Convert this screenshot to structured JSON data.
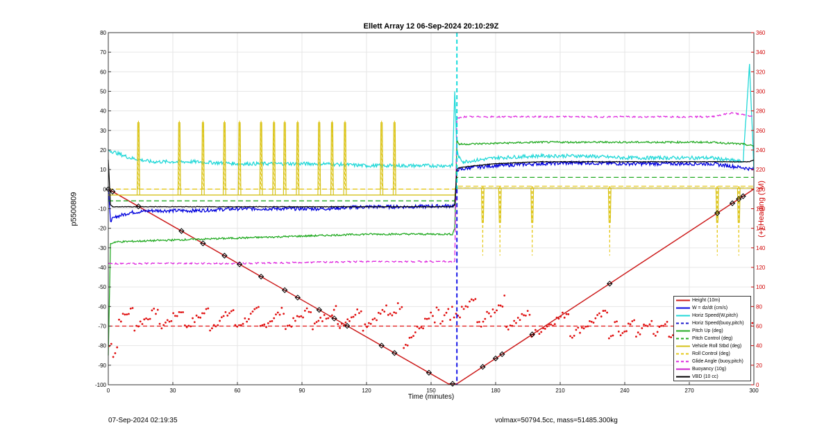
{
  "chart_data": {
    "type": "line",
    "title": "Ellett Array 12 06-Sep-2024 20:10:29Z",
    "xlabel": "Time (minutes)",
    "ylabel": "p5500809",
    "ylabel_right": "(+) Heading (°M)",
    "xlim": [
      0,
      300
    ],
    "ylim": [
      -100,
      80
    ],
    "ylim_right": [
      0,
      360
    ],
    "x_ticks": [
      0,
      30,
      60,
      90,
      120,
      150,
      180,
      210,
      240,
      270,
      300
    ],
    "y_ticks": [
      -100,
      -90,
      -80,
      -70,
      -60,
      -50,
      -40,
      -30,
      -20,
      -10,
      0,
      10,
      20,
      30,
      40,
      50,
      60,
      70,
      80
    ],
    "y_ticks_right": [
      0,
      20,
      40,
      60,
      80,
      100,
      120,
      140,
      160,
      180,
      200,
      220,
      240,
      260,
      280,
      300,
      320,
      340,
      360
    ],
    "grid": true,
    "legend_position": "bottom-right",
    "vertical_markers": [
      {
        "x": 162,
        "color": "#00d8d8",
        "style": "dashed",
        "y_from": 80,
        "y_to": 0
      },
      {
        "x": 162,
        "color": "#0000e6",
        "style": "dashed",
        "y_from": 0,
        "y_to": -100
      }
    ],
    "series": [
      {
        "name": "Height (10m)",
        "color": "#cc1a1a",
        "style": "solid",
        "x": [
          0,
          158,
          162,
          300
        ],
        "y": [
          0,
          -99.5,
          -99.5,
          0
        ]
      },
      {
        "name": "W = dz/dt (cm/s)",
        "color": "#0000dd",
        "style": "solid",
        "x": [
          0,
          1,
          4,
          10,
          20,
          40,
          60,
          80,
          100,
          120,
          140,
          160,
          161,
          162,
          164,
          168,
          180,
          200,
          220,
          240,
          260,
          280,
          295,
          300
        ],
        "y": [
          0,
          -16,
          -14,
          -12,
          -11,
          -11,
          -10,
          -10,
          -10,
          -9,
          -9,
          -8.5,
          -8,
          10,
          10,
          11,
          12,
          13,
          13.5,
          13,
          13,
          13,
          11,
          10
        ]
      },
      {
        "name": "Horiz Speed(W,pitch)",
        "color": "#22d8d8",
        "style": "solid",
        "x": [
          0,
          5,
          10,
          20,
          30,
          40,
          60,
          80,
          100,
          120,
          140,
          160,
          161,
          162,
          163,
          165,
          180,
          200,
          220,
          240,
          260,
          280,
          295,
          298,
          300
        ],
        "y": [
          20,
          18,
          16,
          14,
          14,
          14,
          13,
          13,
          13,
          12,
          12,
          12,
          50,
          20,
          16,
          14,
          16,
          17,
          17,
          16,
          16,
          16,
          14,
          64,
          10
        ]
      },
      {
        "name": "Horiz Speed(buoy,pitch)",
        "color": "#1a1acc",
        "style": "dashed",
        "x": [
          162,
          300
        ],
        "y": [
          0.5,
          0.5
        ]
      },
      {
        "name": "Pitch Up (deg)",
        "color": "#22aa22",
        "style": "solid",
        "x": [
          0,
          1,
          3,
          30,
          60,
          90,
          120,
          160,
          161,
          162,
          163,
          165,
          200,
          240,
          280,
          295,
          300
        ],
        "y": [
          -85,
          -28,
          -27,
          -26,
          -25,
          -24,
          -23,
          -23,
          -20,
          25,
          23,
          23,
          24,
          24,
          24,
          23,
          22
        ]
      },
      {
        "name": "Pitch Control (deg)",
        "color": "#22aa22",
        "style": "dashed",
        "x": [
          0,
          161,
          162,
          300
        ],
        "y": [
          -6,
          -6,
          6,
          6
        ]
      },
      {
        "name": "Vehicle Roll Stbd (deg)",
        "color": "#d4c21a",
        "style": "solid",
        "x": [
          0,
          161,
          162,
          300
        ],
        "y": [
          -3,
          -3,
          0.5,
          0.5
        ]
      },
      {
        "name": "Roll Control (deg)",
        "color": "#e6c81a",
        "style": "dashed",
        "x": [
          0,
          161,
          162,
          300
        ],
        "y": [
          0,
          0,
          1.5,
          1.5
        ]
      },
      {
        "name": "Glide Angle (buoy,pitch)",
        "color": "#dd22dd",
        "style": "dashed",
        "x": [
          0,
          60,
          120,
          160,
          161,
          162,
          165,
          200,
          240,
          280,
          290,
          300
        ],
        "y": [
          -38,
          -38,
          -37,
          -37,
          -37,
          36,
          37,
          37,
          37,
          37,
          39,
          37
        ]
      },
      {
        "name": "Buoyancy (10g)",
        "color": "#cc22cc",
        "style": "solid",
        "x": [],
        "y": []
      },
      {
        "name": "VBD (10 cc)",
        "color": "#000000",
        "style": "solid",
        "x": [
          0,
          1,
          2,
          160,
          161,
          162,
          163,
          170,
          180,
          200,
          298,
          300
        ],
        "y": [
          15,
          -8,
          -9,
          -9,
          -8,
          10,
          11,
          12,
          13,
          14,
          14,
          15
        ]
      }
    ],
    "height_markers_x": [
      0,
      2,
      14,
      34,
      44,
      54,
      61,
      71,
      82,
      88,
      98,
      105,
      111,
      127,
      133,
      149,
      160,
      174,
      180,
      183,
      197,
      233,
      283,
      290,
      293,
      295
    ],
    "roll_spikes_descent": [
      14,
      33,
      44,
      54,
      61,
      71,
      77,
      82,
      88,
      98,
      104,
      110,
      127,
      133
    ],
    "roll_spikes_ascent": [
      174,
      182,
      197,
      233,
      283,
      293
    ],
    "heading_scatter_note": "red dotted heading series on right axis (mostly 40–90 °M)"
  },
  "footer": {
    "left": "07-Sep-2024 02:19:35",
    "right": "volmax=50794.5cc, mass=51485.300kg"
  }
}
